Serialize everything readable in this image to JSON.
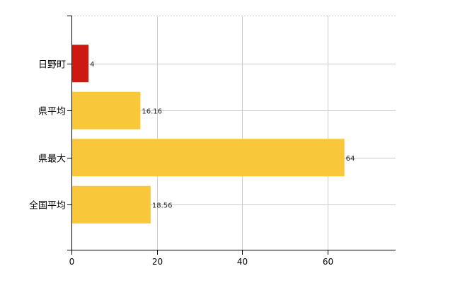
{
  "chart_data": {
    "type": "bar",
    "orientation": "horizontal",
    "categories": [
      "日野町",
      "県平均",
      "県最大",
      "全国平均"
    ],
    "values": [
      4,
      16.16,
      64,
      18.56
    ],
    "value_labels": [
      "4",
      "16.16",
      "64",
      "18.56"
    ],
    "bar_colors": [
      "#cc1a12",
      "#f9c83a",
      "#f9c83a",
      "#f9c83a"
    ],
    "xlim": [
      0,
      76
    ],
    "x_ticks": [
      0,
      20,
      40,
      60
    ],
    "x_tick_labels": [
      "0",
      "20",
      "40",
      "60"
    ],
    "grid": true,
    "title": "",
    "xlabel": "",
    "ylabel": ""
  }
}
